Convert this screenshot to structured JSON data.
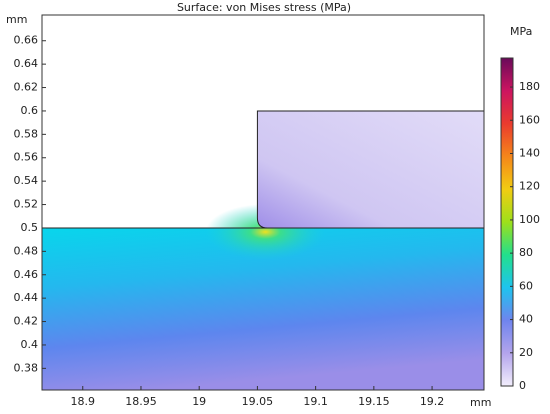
{
  "chart_data": {
    "type": "surface",
    "title": "Surface: von Mises stress (MPa)",
    "x_unit": "mm",
    "y_unit": "mm",
    "xlim": [
      18.865,
      19.2446
    ],
    "ylim": [
      0.3615,
      0.682
    ],
    "xticks": [
      18.9,
      18.95,
      19,
      19.05,
      19.1,
      19.15,
      19.2
    ],
    "yticks": [
      0.38,
      0.4,
      0.42,
      0.44,
      0.46,
      0.48,
      0.5,
      0.52,
      0.54,
      0.56,
      0.58,
      0.6,
      0.62,
      0.64,
      0.66
    ],
    "colorbar": {
      "label": "MPa",
      "lim": [
        0,
        197.5
      ],
      "ticks": [
        0,
        20,
        40,
        60,
        80,
        100,
        120,
        140,
        160,
        180
      ],
      "colors": [
        "#f2eefc",
        "#b3a4ec",
        "#6f84ee",
        "#1ec4ee",
        "#22e08c",
        "#9ee01a",
        "#f2cc12",
        "#f5861a",
        "#ea3b2e",
        "#cc1460",
        "#6a0a5a"
      ]
    }
  }
}
